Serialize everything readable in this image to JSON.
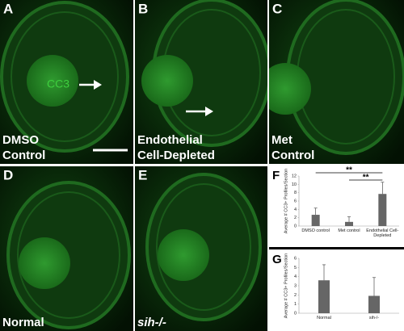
{
  "panels": [
    {
      "letter": "A",
      "label": [
        "DMSO",
        "Control"
      ],
      "annotation": "CC3"
    },
    {
      "letter": "B",
      "label": [
        "Endothelial",
        "Cell-Depleted"
      ]
    },
    {
      "letter": "C",
      "label": [
        "Met",
        "Control"
      ]
    },
    {
      "letter": "D",
      "label": [
        "Normal"
      ]
    },
    {
      "letter": "E",
      "label": [
        "sih-/-"
      ]
    }
  ],
  "chart_data": [
    {
      "type": "bar",
      "letter": "F",
      "ylabel": "Average # CC3+ Profiles/Section",
      "categories": [
        "DMSO control",
        "Met control",
        "Endothelial Cell-Depleted"
      ],
      "values": [
        2.7,
        1.0,
        7.7
      ],
      "errors": [
        1.6,
        1.2,
        2.8
      ],
      "color": "#666666",
      "ylim": [
        0,
        12
      ],
      "yticks": [
        0,
        2,
        4,
        6,
        8,
        10,
        12
      ],
      "annotations": [
        "**",
        "**"
      ]
    },
    {
      "type": "bar",
      "letter": "G",
      "ylabel": "Average # CC3+ Profiles/Section",
      "categories": [
        "Normal",
        "sih-/-"
      ],
      "values": [
        3.6,
        1.9
      ],
      "errors": [
        1.7,
        2.0
      ],
      "color": "#666666",
      "ylim": [
        0,
        6
      ],
      "yticks": [
        0,
        1,
        2,
        3,
        4,
        5,
        6
      ]
    }
  ]
}
